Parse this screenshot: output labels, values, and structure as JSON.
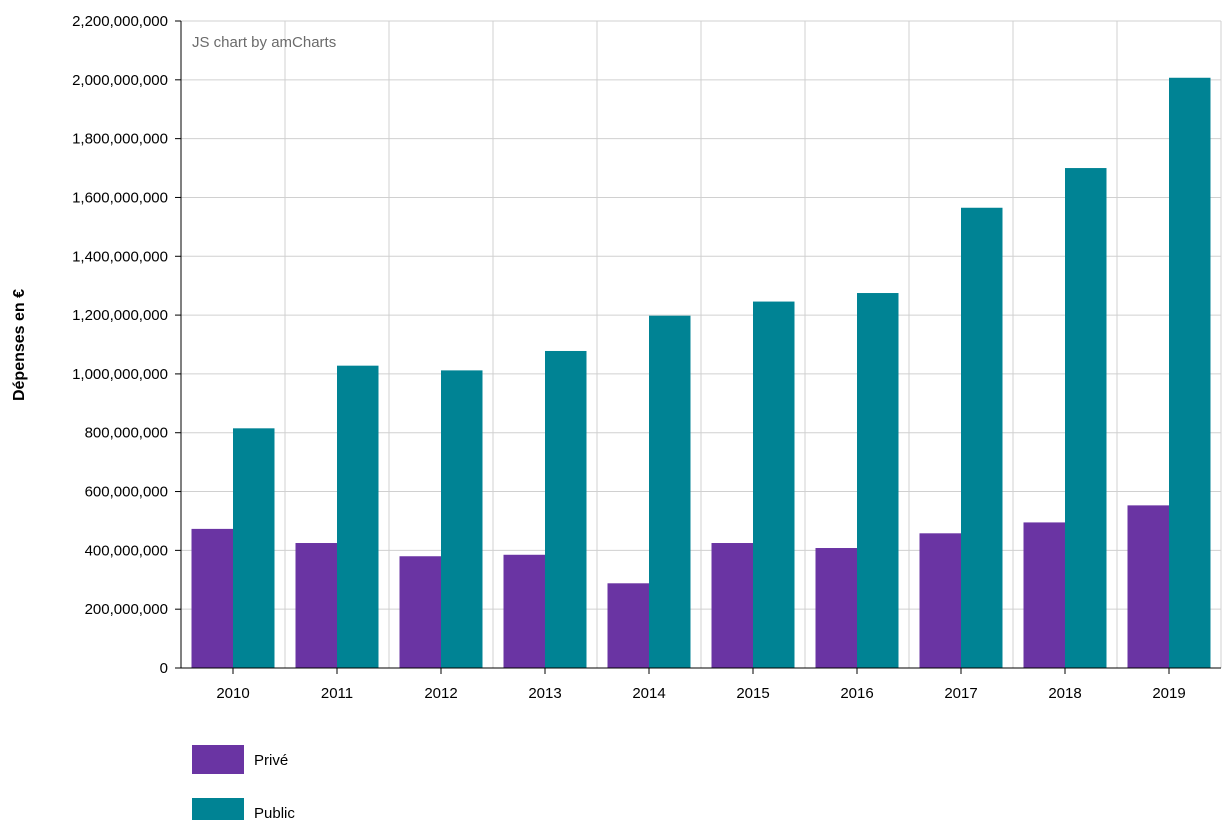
{
  "credit": "JS chart by amCharts",
  "colors": {
    "prive": "#6a34a3",
    "public": "#008394"
  },
  "chart_data": {
    "type": "bar",
    "ylabel": "Dépenses en €",
    "xlabel": "",
    "title": "",
    "ylim": [
      0,
      2200000000
    ],
    "yticks": [
      "0",
      "200,000,000",
      "400,000,000",
      "600,000,000",
      "800,000,000",
      "1,000,000,000",
      "1,200,000,000",
      "1,400,000,000",
      "1,600,000,000",
      "1,800,000,000",
      "2,000,000,000",
      "2,200,000,000"
    ],
    "categories": [
      "2010",
      "2011",
      "2012",
      "2013",
      "2014",
      "2015",
      "2016",
      "2017",
      "2018",
      "2019"
    ],
    "series": [
      {
        "name": "Privé",
        "values": [
          473000000,
          425000000,
          380000000,
          385000000,
          288000000,
          425000000,
          408000000,
          458000000,
          495000000,
          553000000
        ]
      },
      {
        "name": "Public",
        "values": [
          815000000,
          1028000000,
          1012000000,
          1078000000,
          1198000000,
          1246000000,
          1275000000,
          1565000000,
          1700000000,
          2007000000
        ]
      }
    ],
    "grid": true,
    "legend": "bottom-left"
  }
}
